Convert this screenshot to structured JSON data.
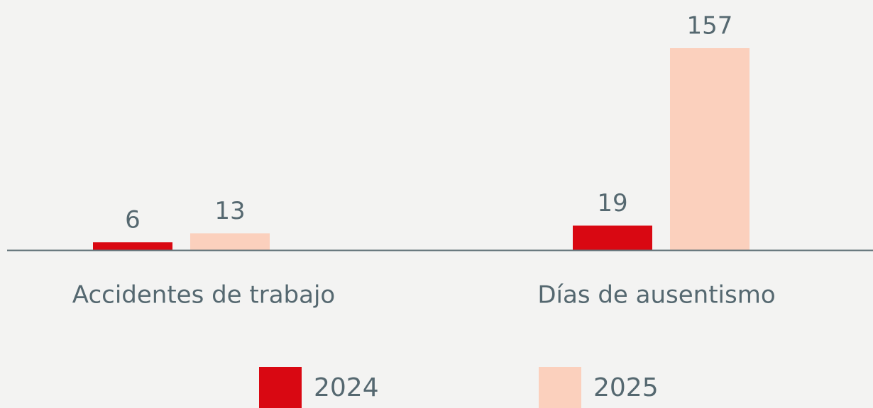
{
  "chart_data": {
    "type": "bar",
    "categories": [
      "Accidentes de trabajo",
      "Días de ausentismo"
    ],
    "series": [
      {
        "name": "2024",
        "color": "#d90812",
        "values": [
          6,
          19
        ]
      },
      {
        "name": "2025",
        "color": "#fbd0bd",
        "values": [
          13,
          157
        ]
      }
    ]
  }
}
